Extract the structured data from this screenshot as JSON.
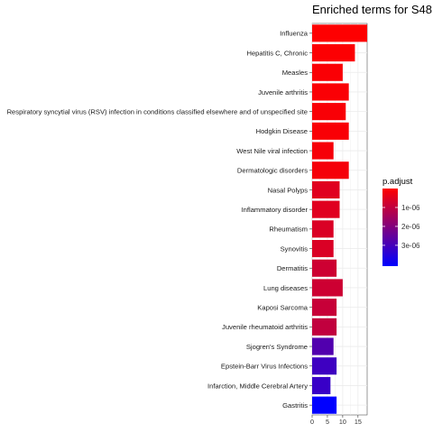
{
  "chart_data": {
    "type": "bar",
    "orientation": "horizontal",
    "title": "Enriched terms for  S48",
    "xlabel": "",
    "ylabel": "",
    "xlim": [
      0,
      18
    ],
    "x_ticks": [
      0,
      5,
      10,
      15
    ],
    "x_tick_labels": [
      "0",
      "5",
      "10",
      "15"
    ],
    "grid": true,
    "legend_position": "right",
    "categories": [
      "Influenza",
      "Hepatitis C, Chronic",
      "Measles",
      "Juvenile arthritis",
      "Respiratory syncytial virus (RSV) infection in conditions classified elsewhere and of unspecified site",
      "Hodgkin Disease",
      "West Nile viral infection",
      "Dermatologic disorders",
      "Nasal Polyps",
      "Inflammatory disorder",
      "Rheumatism",
      "Synovitis",
      "Dermatitis",
      "Lung diseases",
      "Kaposi Sarcoma",
      "Juvenile rheumatoid arthritis",
      "Sjogren's Syndrome",
      "Epstein-Barr Virus Infections",
      "Infarction, Middle Cerebral Artery",
      "Gastritis"
    ],
    "values": [
      18,
      14,
      10,
      12,
      11,
      12,
      7,
      12,
      9,
      9,
      7,
      7,
      8,
      10,
      8,
      8,
      7,
      8,
      6,
      8
    ],
    "p_adjust": [
      2e-08,
      5e-08,
      8e-08,
      8e-08,
      1e-07,
      1e-07,
      1.5e-07,
      1.6e-07,
      5e-07,
      5e-07,
      6e-07,
      6e-07,
      8e-07,
      8e-07,
      9e-07,
      1e-06,
      2.8e-06,
      3.1e-06,
      3.2e-06,
      4.1e-06
    ],
    "colorbar": {
      "title": "p.adjust",
      "low_color": "#FF0000",
      "high_color": "#0000FF",
      "range": [
        0,
        4.1e-06
      ],
      "ticks": [
        1e-06,
        2e-06,
        3e-06
      ],
      "tick_labels": [
        "1e-06",
        "2e-06",
        "3e-06"
      ]
    },
    "panel_color": "#ffffff",
    "grid_color": "#ebebeb"
  }
}
